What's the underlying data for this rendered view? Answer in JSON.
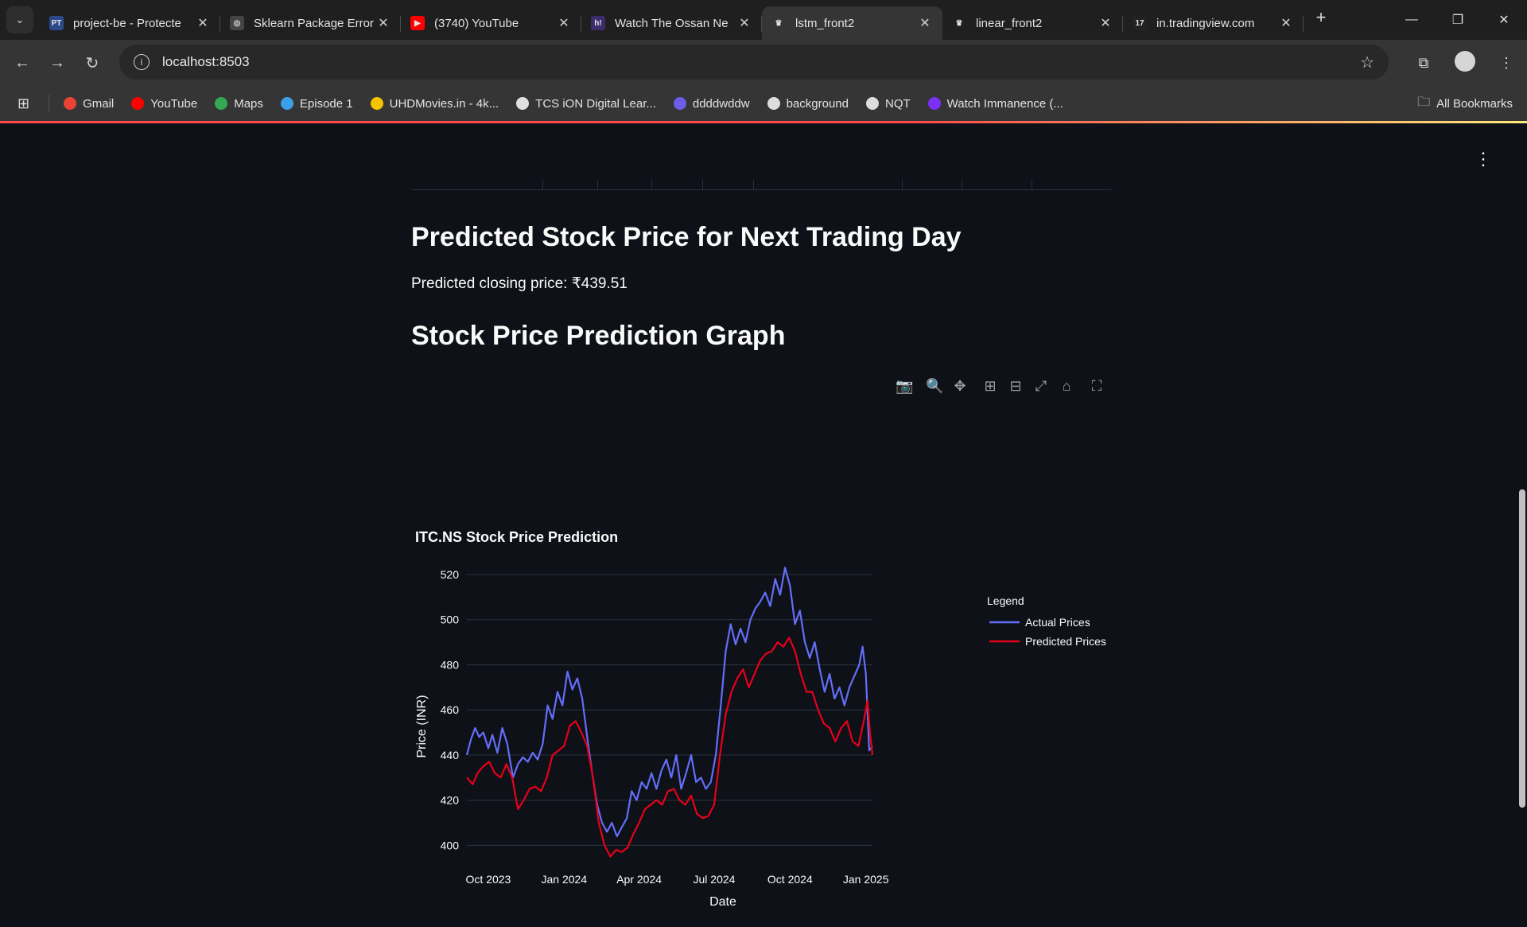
{
  "browser": {
    "tabs": [
      {
        "title": "project-be - Protecte",
        "favicon_text": "PT",
        "favicon_color": "#2b4a8b",
        "active": false
      },
      {
        "title": "Sklearn Package Error",
        "favicon_text": "◎",
        "favicon_color": "#444444",
        "active": false
      },
      {
        "title": "(3740) YouTube",
        "favicon_text": "▶",
        "favicon_color": "#ff0000",
        "active": false
      },
      {
        "title": "Watch The Ossan Ne",
        "favicon_text": "h!",
        "favicon_color": "#3b2d6b",
        "active": false
      },
      {
        "title": "lstm_front2",
        "favicon_text": "♛",
        "favicon_color": "#353535",
        "active": true
      },
      {
        "title": "linear_front2",
        "favicon_text": "♛",
        "favicon_color": "#1f1f1f",
        "active": false
      },
      {
        "title": "in.tradingview.com",
        "favicon_text": "17",
        "favicon_color": "#222222",
        "active": false
      }
    ],
    "url": "localhost:8503",
    "bookmarks": [
      {
        "label": "Gmail",
        "color": "#ea4335"
      },
      {
        "label": "YouTube",
        "color": "#ff0000"
      },
      {
        "label": "Maps",
        "color": "#34a853"
      },
      {
        "label": "Episode 1",
        "color": "#3aa0e8"
      },
      {
        "label": "UHDMovies.in - 4k...",
        "color": "#f5c400"
      },
      {
        "label": "TCS iON Digital Lear...",
        "color": "#e0e0e0"
      },
      {
        "label": "ddddwddw",
        "color": "#6c5ce7"
      },
      {
        "label": "background",
        "color": "#dddddd"
      },
      {
        "label": "NQT",
        "color": "#dddddd"
      },
      {
        "label": "Watch Immanence (...",
        "color": "#7b2ff7"
      }
    ],
    "all_bookmarks": "All Bookmarks"
  },
  "main": {
    "prediction_heading": "Predicted Stock Price for Next Trading Day",
    "prediction_text": "Predicted closing price: ₹439.51",
    "graph_heading": "Stock Price Prediction Graph"
  },
  "chart_data": {
    "type": "line",
    "title": "ITC.NS Stock Price Prediction",
    "xlabel": "Date",
    "ylabel": "Price (INR)",
    "x_range": [
      "2023-09-05",
      "2025-01-09"
    ],
    "ylim": [
      392,
      526
    ],
    "yticks": [
      400,
      420,
      440,
      460,
      480,
      500,
      520
    ],
    "xticks": [
      {
        "date": "2023-10-01",
        "label": "Oct 2023"
      },
      {
        "date": "2024-01-01",
        "label": "Jan 2024"
      },
      {
        "date": "2024-04-01",
        "label": "Apr 2024"
      },
      {
        "date": "2024-07-01",
        "label": "Jul 2024"
      },
      {
        "date": "2024-10-01",
        "label": "Oct 2024"
      },
      {
        "date": "2025-01-01",
        "label": "Jan 2025"
      }
    ],
    "grid": true,
    "legend": {
      "title": "Legend",
      "placement": "top-right-outside"
    },
    "series": [
      {
        "name": "Actual Prices",
        "color": "#636efa",
        "points": [
          [
            "2023-09-05",
            440
          ],
          [
            "2023-09-10",
            447
          ],
          [
            "2023-09-15",
            452
          ],
          [
            "2023-09-20",
            448
          ],
          [
            "2023-09-25",
            450
          ],
          [
            "2023-10-01",
            443
          ],
          [
            "2023-10-06",
            449
          ],
          [
            "2023-10-12",
            441
          ],
          [
            "2023-10-18",
            452
          ],
          [
            "2023-10-24",
            445
          ],
          [
            "2023-10-31",
            430
          ],
          [
            "2023-11-06",
            436
          ],
          [
            "2023-11-12",
            439
          ],
          [
            "2023-11-18",
            437
          ],
          [
            "2023-11-24",
            441
          ],
          [
            "2023-11-30",
            438
          ],
          [
            "2023-12-06",
            445
          ],
          [
            "2023-12-12",
            462
          ],
          [
            "2023-12-18",
            456
          ],
          [
            "2023-12-24",
            468
          ],
          [
            "2023-12-30",
            462
          ],
          [
            "2024-01-05",
            477
          ],
          [
            "2024-01-11",
            469
          ],
          [
            "2024-01-17",
            474
          ],
          [
            "2024-01-23",
            465
          ],
          [
            "2024-01-29",
            448
          ],
          [
            "2024-02-04",
            432
          ],
          [
            "2024-02-10",
            418
          ],
          [
            "2024-02-16",
            410
          ],
          [
            "2024-02-22",
            406
          ],
          [
            "2024-02-28",
            410
          ],
          [
            "2024-03-05",
            404
          ],
          [
            "2024-03-11",
            408
          ],
          [
            "2024-03-17",
            412
          ],
          [
            "2024-03-23",
            424
          ],
          [
            "2024-03-29",
            420
          ],
          [
            "2024-04-04",
            428
          ],
          [
            "2024-04-10",
            425
          ],
          [
            "2024-04-16",
            432
          ],
          [
            "2024-04-22",
            425
          ],
          [
            "2024-04-28",
            433
          ],
          [
            "2024-05-04",
            438
          ],
          [
            "2024-05-10",
            430
          ],
          [
            "2024-05-16",
            440
          ],
          [
            "2024-05-22",
            425
          ],
          [
            "2024-05-28",
            432
          ],
          [
            "2024-06-03",
            440
          ],
          [
            "2024-06-09",
            428
          ],
          [
            "2024-06-15",
            430
          ],
          [
            "2024-06-21",
            425
          ],
          [
            "2024-06-27",
            428
          ],
          [
            "2024-07-03",
            440
          ],
          [
            "2024-07-09",
            462
          ],
          [
            "2024-07-15",
            486
          ],
          [
            "2024-07-21",
            498
          ],
          [
            "2024-07-27",
            489
          ],
          [
            "2024-08-02",
            496
          ],
          [
            "2024-08-08",
            490
          ],
          [
            "2024-08-14",
            500
          ],
          [
            "2024-08-20",
            505
          ],
          [
            "2024-08-26",
            508
          ],
          [
            "2024-09-01",
            512
          ],
          [
            "2024-09-07",
            506
          ],
          [
            "2024-09-13",
            518
          ],
          [
            "2024-09-19",
            511
          ],
          [
            "2024-09-25",
            523
          ],
          [
            "2024-10-01",
            515
          ],
          [
            "2024-10-07",
            498
          ],
          [
            "2024-10-13",
            504
          ],
          [
            "2024-10-19",
            490
          ],
          [
            "2024-10-25",
            483
          ],
          [
            "2024-10-31",
            490
          ],
          [
            "2024-11-06",
            478
          ],
          [
            "2024-11-12",
            468
          ],
          [
            "2024-11-18",
            476
          ],
          [
            "2024-11-24",
            465
          ],
          [
            "2024-11-30",
            470
          ],
          [
            "2024-12-06",
            462
          ],
          [
            "2024-12-12",
            470
          ],
          [
            "2024-12-18",
            475
          ],
          [
            "2024-12-24",
            480
          ],
          [
            "2024-12-28",
            488
          ],
          [
            "2025-01-01",
            476
          ],
          [
            "2025-01-05",
            442
          ],
          [
            "2025-01-09",
            444
          ]
        ]
      },
      {
        "name": "Predicted Prices",
        "color": "#e8001a",
        "points": [
          [
            "2023-09-05",
            430
          ],
          [
            "2023-09-12",
            427
          ],
          [
            "2023-09-18",
            432
          ],
          [
            "2023-09-25",
            435
          ],
          [
            "2023-10-02",
            437
          ],
          [
            "2023-10-09",
            432
          ],
          [
            "2023-10-16",
            430
          ],
          [
            "2023-10-23",
            436
          ],
          [
            "2023-10-30",
            430
          ],
          [
            "2023-11-06",
            416
          ],
          [
            "2023-11-13",
            420
          ],
          [
            "2023-11-20",
            425
          ],
          [
            "2023-11-27",
            426
          ],
          [
            "2023-12-04",
            424
          ],
          [
            "2023-12-11",
            430
          ],
          [
            "2023-12-18",
            440
          ],
          [
            "2023-12-25",
            442
          ],
          [
            "2024-01-01",
            444
          ],
          [
            "2024-01-08",
            453
          ],
          [
            "2024-01-15",
            455
          ],
          [
            "2024-01-22",
            450
          ],
          [
            "2024-01-29",
            444
          ],
          [
            "2024-02-05",
            430
          ],
          [
            "2024-02-12",
            410
          ],
          [
            "2024-02-19",
            400
          ],
          [
            "2024-02-26",
            395
          ],
          [
            "2024-03-04",
            398
          ],
          [
            "2024-03-11",
            397
          ],
          [
            "2024-03-18",
            399
          ],
          [
            "2024-03-25",
            405
          ],
          [
            "2024-04-01",
            410
          ],
          [
            "2024-04-08",
            416
          ],
          [
            "2024-04-15",
            418
          ],
          [
            "2024-04-22",
            420
          ],
          [
            "2024-04-29",
            418
          ],
          [
            "2024-05-06",
            424
          ],
          [
            "2024-05-13",
            425
          ],
          [
            "2024-05-20",
            420
          ],
          [
            "2024-05-27",
            418
          ],
          [
            "2024-06-03",
            422
          ],
          [
            "2024-06-10",
            414
          ],
          [
            "2024-06-17",
            412
          ],
          [
            "2024-06-24",
            413
          ],
          [
            "2024-07-01",
            418
          ],
          [
            "2024-07-08",
            440
          ],
          [
            "2024-07-15",
            458
          ],
          [
            "2024-07-22",
            468
          ],
          [
            "2024-07-29",
            474
          ],
          [
            "2024-08-05",
            478
          ],
          [
            "2024-08-12",
            470
          ],
          [
            "2024-08-19",
            476
          ],
          [
            "2024-08-26",
            482
          ],
          [
            "2024-09-02",
            485
          ],
          [
            "2024-09-09",
            486
          ],
          [
            "2024-09-16",
            490
          ],
          [
            "2024-09-23",
            488
          ],
          [
            "2024-09-30",
            492
          ],
          [
            "2024-10-07",
            486
          ],
          [
            "2024-10-14",
            476
          ],
          [
            "2024-10-21",
            468
          ],
          [
            "2024-10-28",
            468
          ],
          [
            "2024-11-04",
            460
          ],
          [
            "2024-11-11",
            454
          ],
          [
            "2024-11-18",
            452
          ],
          [
            "2024-11-25",
            446
          ],
          [
            "2024-12-02",
            452
          ],
          [
            "2024-12-09",
            455
          ],
          [
            "2024-12-16",
            446
          ],
          [
            "2024-12-23",
            444
          ],
          [
            "2024-12-30",
            456
          ],
          [
            "2025-01-03",
            464
          ],
          [
            "2025-01-06",
            450
          ],
          [
            "2025-01-09",
            440
          ]
        ]
      }
    ]
  }
}
